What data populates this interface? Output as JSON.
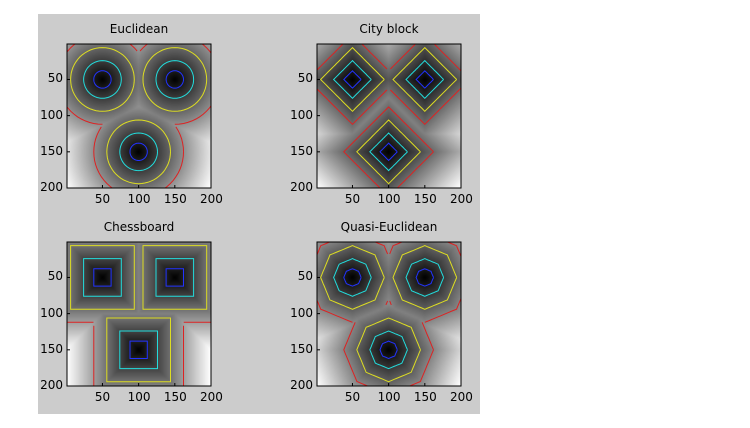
{
  "figure": {
    "background": "#cccccc"
  },
  "chart_data": [
    {
      "type": "heatmap",
      "title": "Euclidean",
      "metric": "euclidean",
      "seed_points": [
        [
          50,
          50
        ],
        [
          150,
          50
        ],
        [
          100,
          150
        ]
      ],
      "xlim": [
        1,
        200
      ],
      "ylim": [
        1,
        200
      ],
      "y_reversed": true,
      "xticks": [
        50,
        100,
        150,
        200
      ],
      "yticks": [
        50,
        100,
        150,
        200
      ],
      "colormap": "gray",
      "contour_colors": [
        "#2233ff",
        "#22dddd",
        "#dddd22",
        "#dd2222"
      ]
    },
    {
      "type": "heatmap",
      "title": "City block",
      "metric": "cityblock",
      "seed_points": [
        [
          50,
          50
        ],
        [
          150,
          50
        ],
        [
          100,
          150
        ]
      ],
      "xlim": [
        1,
        200
      ],
      "ylim": [
        1,
        200
      ],
      "y_reversed": true,
      "xticks": [
        50,
        100,
        150,
        200
      ],
      "yticks": [
        50,
        100,
        150,
        200
      ],
      "colormap": "gray",
      "contour_colors": [
        "#2233ff",
        "#22dddd",
        "#dddd22",
        "#dd2222"
      ]
    },
    {
      "type": "heatmap",
      "title": "Chessboard",
      "metric": "chessboard",
      "seed_points": [
        [
          50,
          50
        ],
        [
          150,
          50
        ],
        [
          100,
          150
        ]
      ],
      "xlim": [
        1,
        200
      ],
      "ylim": [
        1,
        200
      ],
      "y_reversed": true,
      "xticks": [
        50,
        100,
        150,
        200
      ],
      "yticks": [
        50,
        100,
        150,
        200
      ],
      "colormap": "gray",
      "contour_colors": [
        "#2233ff",
        "#22dddd",
        "#dddd22",
        "#dd2222"
      ]
    },
    {
      "type": "heatmap",
      "title": "Quasi-Euclidean",
      "metric": "quasi-euclidean",
      "seed_points": [
        [
          50,
          50
        ],
        [
          150,
          50
        ],
        [
          100,
          150
        ]
      ],
      "xlim": [
        1,
        200
      ],
      "ylim": [
        1,
        200
      ],
      "y_reversed": true,
      "xticks": [
        50,
        100,
        150,
        200
      ],
      "yticks": [
        50,
        100,
        150,
        200
      ],
      "colormap": "gray",
      "contour_colors": [
        "#2233ff",
        "#22dddd",
        "#dddd22",
        "#dd2222"
      ]
    }
  ]
}
